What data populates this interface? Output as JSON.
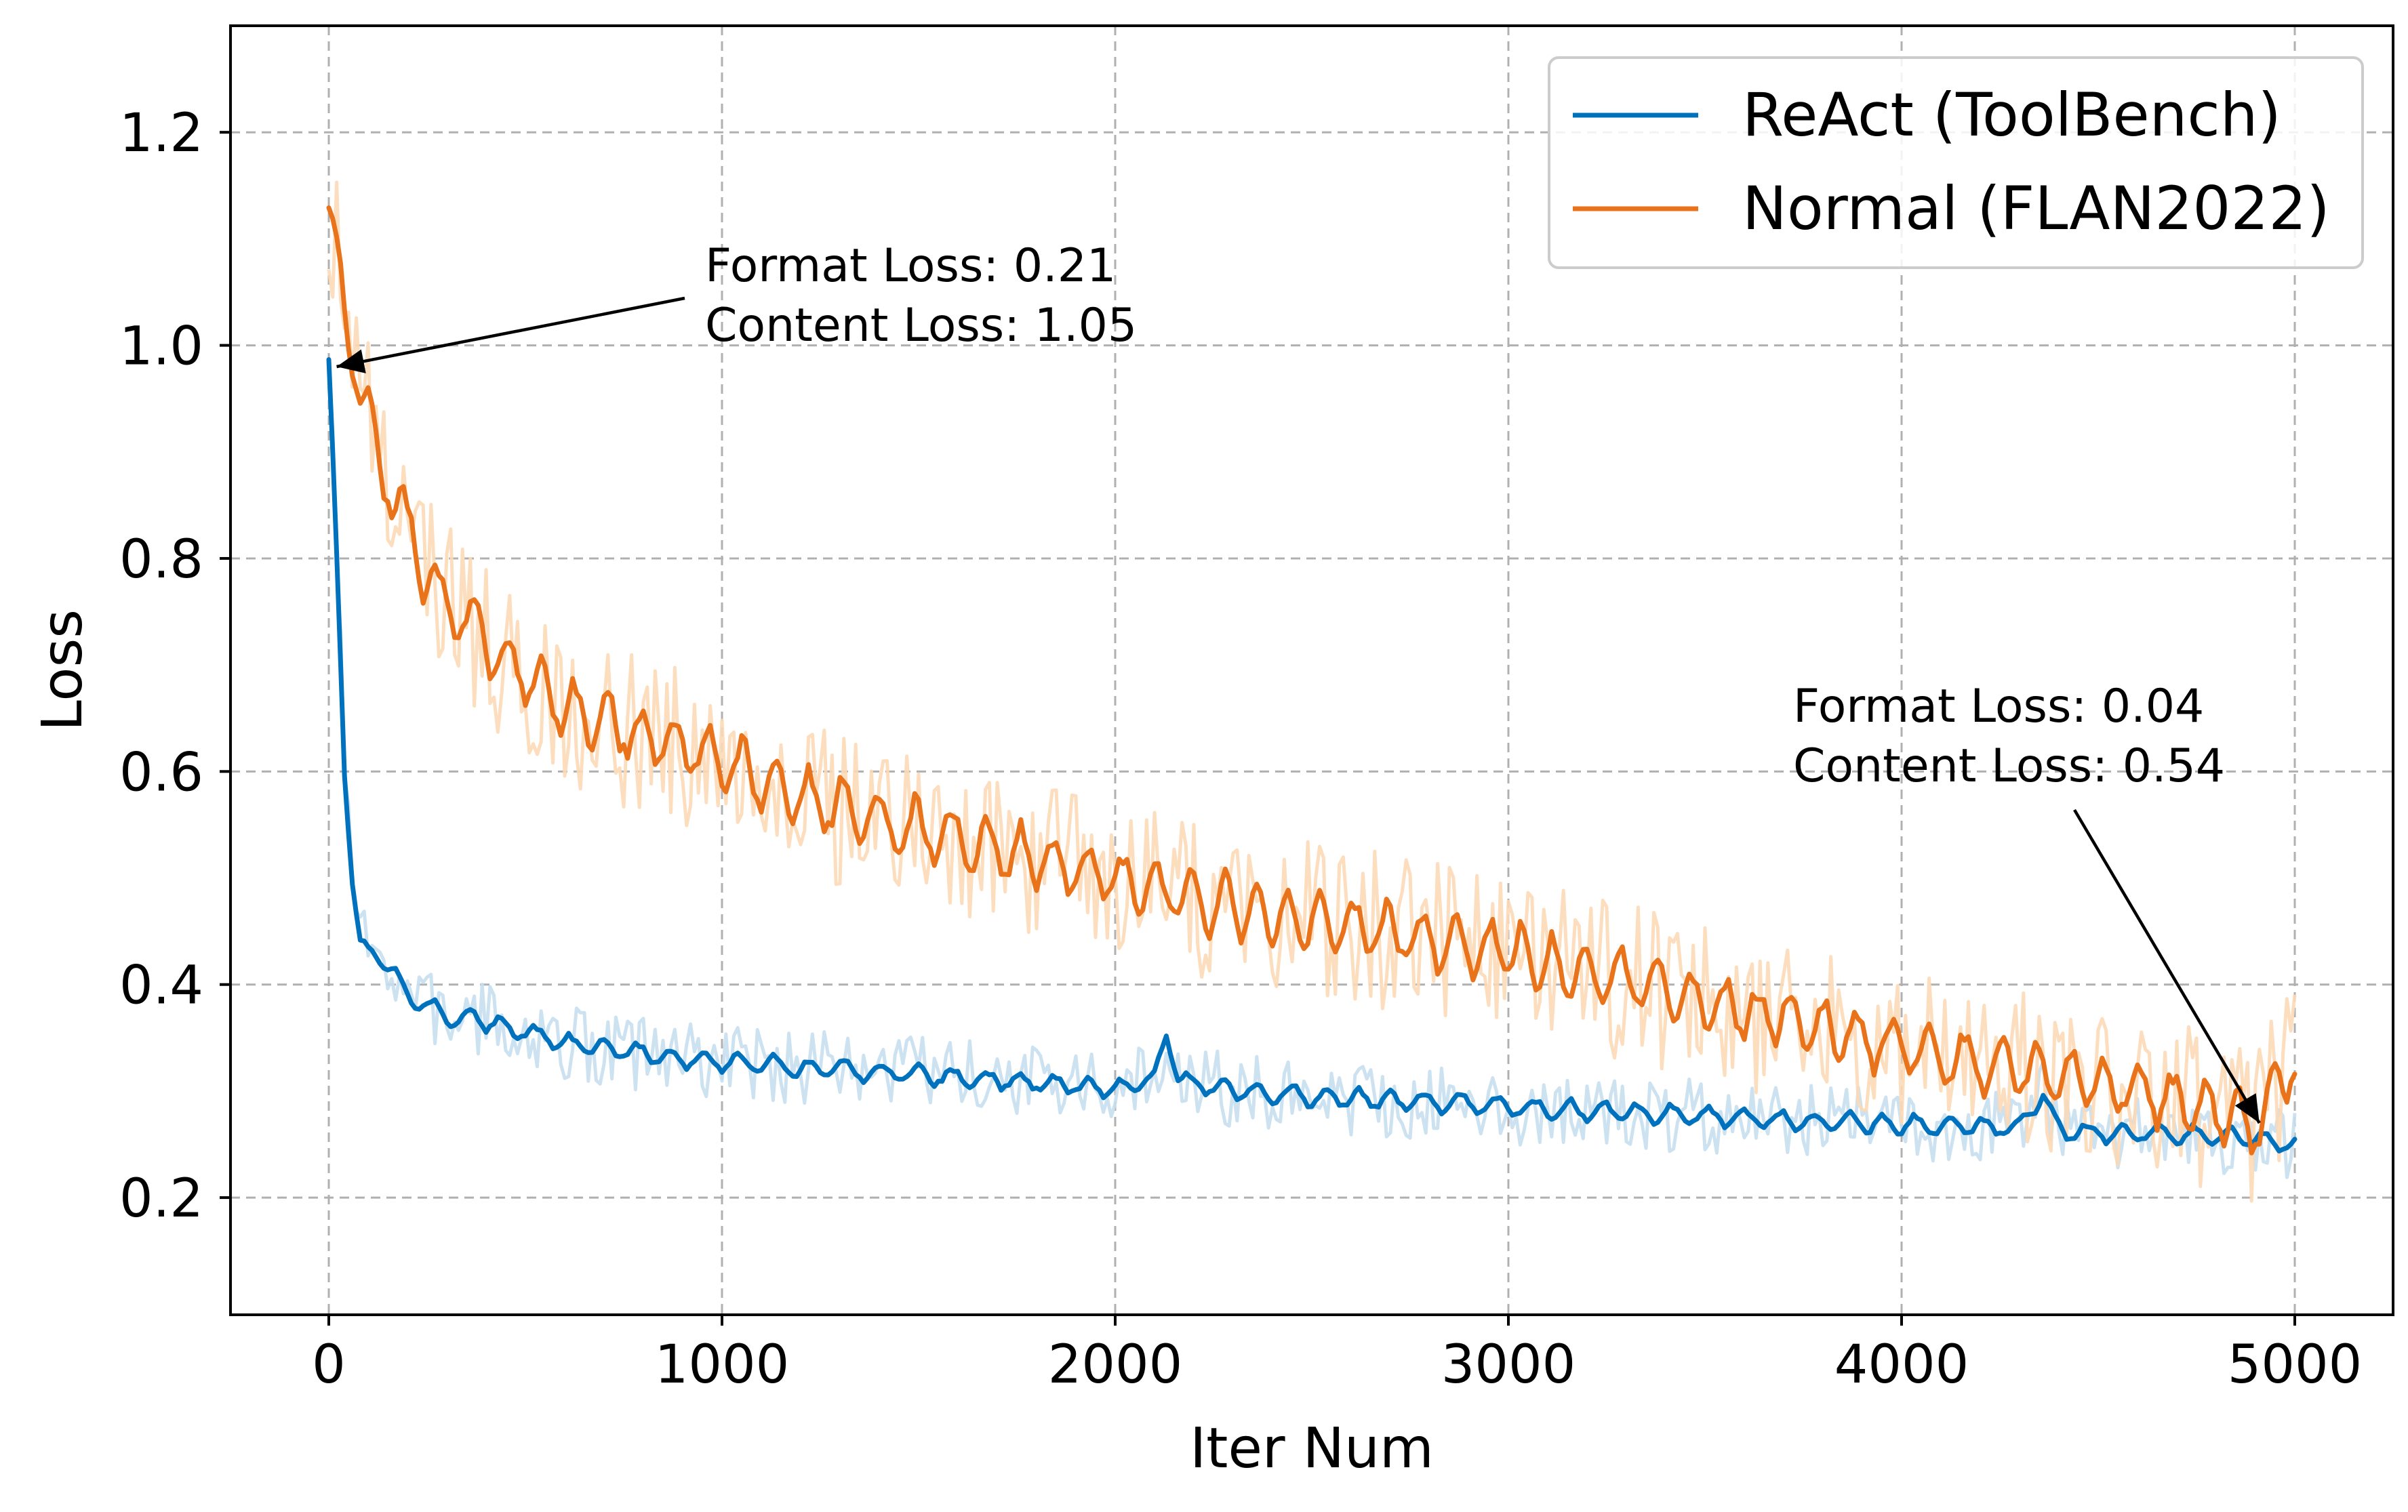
{
  "chart_data": {
    "type": "line",
    "title": "",
    "xlabel": "Iter Num",
    "ylabel": "Loss",
    "xlim": [
      -250,
      5250
    ],
    "ylim": [
      0.09,
      1.3
    ],
    "grid": true,
    "legend_position": "top-right",
    "xticks": [
      0,
      1000,
      2000,
      3000,
      4000,
      5000
    ],
    "xtick_labels": [
      "0",
      "1000",
      "2000",
      "3000",
      "4000",
      "5000"
    ],
    "yticks": [
      0.2,
      0.4,
      0.6,
      0.8,
      1.0,
      1.2
    ],
    "ytick_labels": [
      "0.2",
      "0.4",
      "0.6",
      "0.8",
      "1.0",
      "1.2"
    ],
    "series": [
      {
        "name": "ReAct (ToolBench)",
        "color": "#0072BD",
        "raw_color": "#c6dff0",
        "x": [
          0,
          20,
          40,
          60,
          80,
          100,
          150,
          200,
          250,
          300,
          400,
          500,
          600,
          700,
          800,
          900,
          1000,
          1200,
          1400,
          1600,
          1800,
          2000,
          2100,
          2130,
          2160,
          2300,
          2500,
          2700,
          2900,
          3100,
          3300,
          3500,
          3700,
          3900,
          4100,
          4300,
          4360,
          4400,
          4600,
          4800,
          5000
        ],
        "values": [
          0.98,
          0.8,
          0.6,
          0.5,
          0.44,
          0.43,
          0.42,
          0.39,
          0.38,
          0.37,
          0.365,
          0.355,
          0.345,
          0.34,
          0.335,
          0.33,
          0.328,
          0.322,
          0.318,
          0.313,
          0.308,
          0.303,
          0.31,
          0.36,
          0.31,
          0.3,
          0.295,
          0.292,
          0.287,
          0.283,
          0.28,
          0.276,
          0.273,
          0.27,
          0.268,
          0.265,
          0.3,
          0.262,
          0.26,
          0.258,
          0.25
        ]
      },
      {
        "name": "Normal (FLAN2022)",
        "color": "#E8731B",
        "raw_color": "#fcd9b6",
        "x": [
          0,
          25,
          50,
          75,
          100,
          150,
          200,
          250,
          300,
          400,
          500,
          600,
          700,
          800,
          900,
          1000,
          1200,
          1400,
          1600,
          1800,
          2000,
          2200,
          2400,
          2600,
          2800,
          3000,
          3200,
          3400,
          3600,
          3800,
          4000,
          4200,
          4400,
          4600,
          4800,
          4900,
          5000
        ],
        "values": [
          1.11,
          1.08,
          1.02,
          0.96,
          0.93,
          0.87,
          0.83,
          0.78,
          0.76,
          0.72,
          0.69,
          0.66,
          0.645,
          0.635,
          0.625,
          0.61,
          0.575,
          0.555,
          0.535,
          0.52,
          0.5,
          0.48,
          0.465,
          0.455,
          0.44,
          0.43,
          0.41,
          0.395,
          0.375,
          0.36,
          0.34,
          0.325,
          0.315,
          0.3,
          0.28,
          0.27,
          0.33
        ]
      }
    ],
    "annotations": [
      {
        "lines": [
          "Format Loss: 0.21",
          "Content Loss: 1.05"
        ],
        "target_x": 20,
        "target_y": 0.98
      },
      {
        "lines": [
          "Format Loss: 0.04",
          "Content Loss: 0.54"
        ],
        "target_x": 4910,
        "target_y": 0.27
      }
    ]
  }
}
